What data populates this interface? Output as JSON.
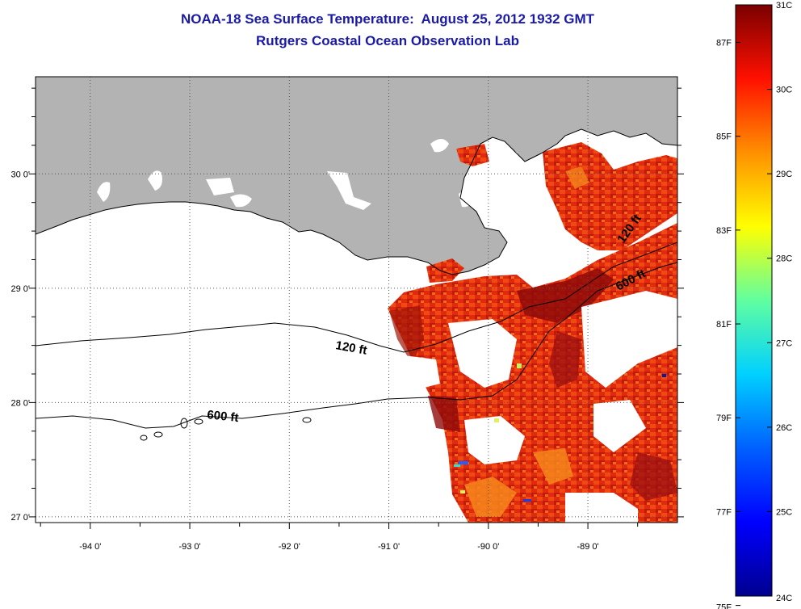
{
  "header": {
    "title": "NOAA-18 Sea Surface Temperature:  August 25, 2012 1932 GMT",
    "subtitle": "Rutgers Coastal Ocean Observation Lab"
  },
  "map": {
    "lon_ticks": [
      {
        "value": -94,
        "label": "-94 0'"
      },
      {
        "value": -93,
        "label": "-93 0'"
      },
      {
        "value": -92,
        "label": "-92 0'"
      },
      {
        "value": -91,
        "label": "-91 0'"
      },
      {
        "value": -90,
        "label": "-90 0'"
      },
      {
        "value": -89,
        "label": "-89 0'"
      }
    ],
    "lat_ticks": [
      {
        "value": 30,
        "label": "30 0'"
      },
      {
        "value": 29,
        "label": "29 0'"
      },
      {
        "value": 28,
        "label": "28 0'"
      },
      {
        "value": 27,
        "label": "27 0'"
      }
    ],
    "lon_range": [
      -94.55,
      -88.1
    ],
    "lat_range": [
      26.95,
      30.85
    ],
    "grid": "dotted",
    "land_color": "#b3b3b3",
    "contours": [
      {
        "label": "120 ft"
      },
      {
        "label": "600 ft"
      },
      {
        "label": "120 ft"
      },
      {
        "label": "600 ft"
      }
    ]
  },
  "colorbar": {
    "range_c": [
      24,
      31
    ],
    "celsius_labels": [
      "31C",
      "30C",
      "29C",
      "28C",
      "27C",
      "26C",
      "25C",
      "24C"
    ],
    "fahrenheit_labels": [
      "87F",
      "85F",
      "83F",
      "81F",
      "79F",
      "77F",
      "75F"
    ],
    "colors": [
      "#00008f",
      "#0000ff",
      "#0080ff",
      "#00ffff",
      "#80ff80",
      "#ffff00",
      "#ff8000",
      "#ff0000",
      "#800000"
    ]
  }
}
